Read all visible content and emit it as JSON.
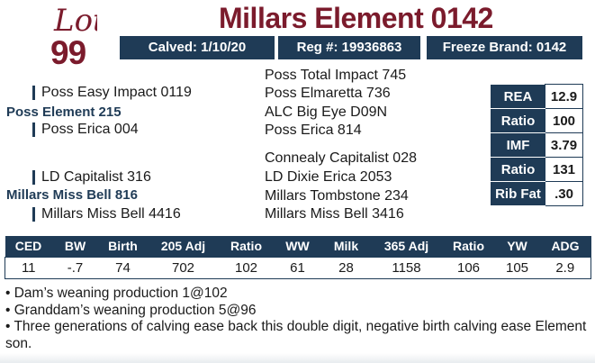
{
  "lot": {
    "word": "Lot",
    "number": "99",
    "color": "#7b1b2c"
  },
  "animal": {
    "name": "Millars Element 0142"
  },
  "ids": {
    "calved": "Calved: 1/10/20",
    "reg": "Reg #: 19936863",
    "freeze_brand": "Freeze Brand: 0142"
  },
  "pedigree": {
    "top_right_1": "Poss Total Impact 745",
    "sire_sire": "Poss Easy Impact 0119",
    "top_right_2": "Poss Elmaretta 736",
    "sire": "Poss Element 215",
    "top_right_3": "ALC Big Eye D09N",
    "sire_dam": "Poss Erica 004",
    "top_right_4": "Poss Erica 814",
    "bottom_right_1": "Connealy Capitalist 028",
    "dam_sire": "LD Capitalist 316",
    "bottom_right_2": "LD Dixie Erica 2053",
    "dam": "Millars Miss Bell 816",
    "bottom_right_3": "Millars Tombstone 234",
    "dam_dam": "Millars Miss Bell 4416",
    "bottom_right_4": "Millars Miss Bell 3416"
  },
  "carcass": [
    {
      "label": "REA",
      "value": "12.9"
    },
    {
      "label": "Ratio",
      "value": "100"
    },
    {
      "label": "IMF",
      "value": "3.79"
    },
    {
      "label": "Ratio",
      "value": "131"
    },
    {
      "label": "Rib Fat",
      "value": ".30"
    }
  ],
  "performance": {
    "headers": [
      "CED",
      "BW",
      "Birth",
      "205 Adj",
      "Ratio",
      "WW",
      "Milk",
      "365 Adj",
      "Ratio",
      "YW",
      "ADG"
    ],
    "values": [
      "11",
      "-.7",
      "74",
      "702",
      "102",
      "61",
      "28",
      "1158",
      "106",
      "105",
      "2.9"
    ]
  },
  "notes": [
    "• Dam’s weaning production 1@102",
    "• Granddam’s weaning production 5@96",
    "• Three generations of calving ease back this double digit, negative birth calving ease Element son."
  ],
  "colors": {
    "navy": "#1f3b56",
    "maroon": "#7b1b2c"
  }
}
